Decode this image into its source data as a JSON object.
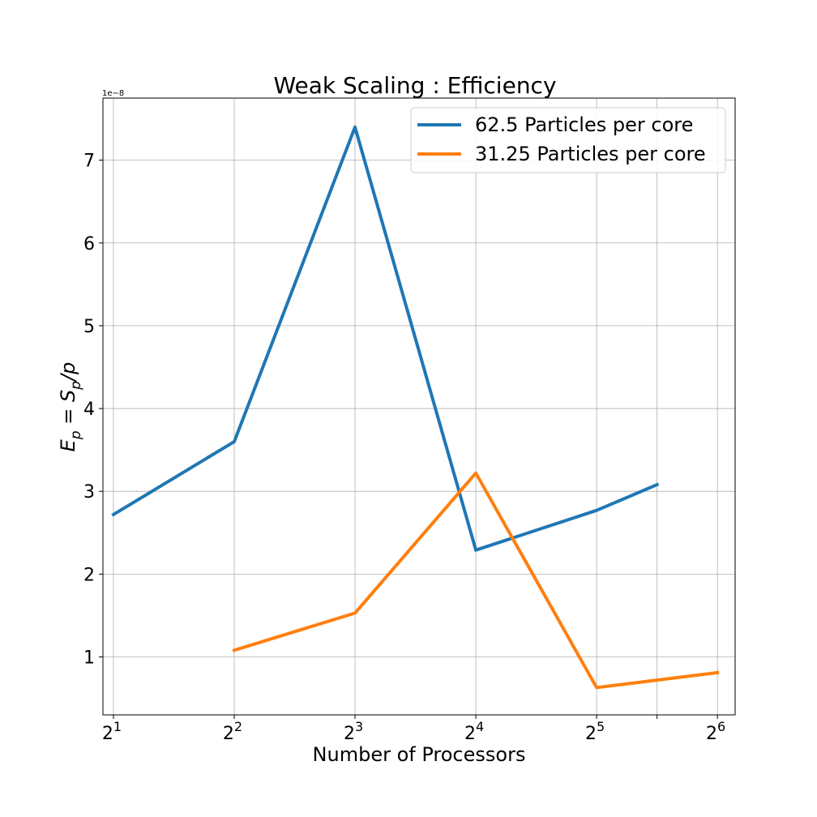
{
  "chart_data": {
    "type": "line",
    "title": "Weak Scaling : Efficiency",
    "xlabel": "Number of Processors",
    "ylabel_base": "E",
    "ylabel_sub1": "p",
    "ylabel_mid": " = S",
    "ylabel_sub2": "p",
    "ylabel_tail": "/p",
    "offset_label": "1e−8",
    "x_scale": "log2",
    "xlim": [
      1.883,
      70.85
    ],
    "ylim": [
      0.3,
      7.75
    ],
    "grid": true,
    "legend_position": "top-right",
    "x_ticks": [
      {
        "value": 2,
        "base": "2",
        "exp": "1"
      },
      {
        "value": 4,
        "base": "2",
        "exp": "2"
      },
      {
        "value": 8,
        "base": "2",
        "exp": "3"
      },
      {
        "value": 16,
        "base": "2",
        "exp": "4"
      },
      {
        "value": 32,
        "base": "2",
        "exp": "5"
      },
      {
        "value": 45.25,
        "base": "",
        "exp": ""
      },
      {
        "value": 64,
        "base": "2",
        "exp": "6"
      }
    ],
    "y_ticks": [
      {
        "value": 1,
        "label": "1"
      },
      {
        "value": 2,
        "label": "2"
      },
      {
        "value": 3,
        "label": "3"
      },
      {
        "value": 4,
        "label": "4"
      },
      {
        "value": 5,
        "label": "5"
      },
      {
        "value": 6,
        "label": "6"
      },
      {
        "value": 7,
        "label": "7"
      }
    ],
    "series": [
      {
        "name": "62.5 Particles per core",
        "color": "#1f77b4",
        "x": [
          2,
          4,
          8,
          16,
          32,
          45.25
        ],
        "y": [
          2.72,
          3.6,
          7.4,
          2.29,
          2.77,
          3.08
        ]
      },
      {
        "name": "31.25 Particles per core",
        "color": "#ff7f0e",
        "x": [
          4,
          8,
          16,
          32,
          64
        ],
        "y": [
          1.08,
          1.53,
          3.22,
          0.63,
          0.81
        ]
      }
    ]
  }
}
